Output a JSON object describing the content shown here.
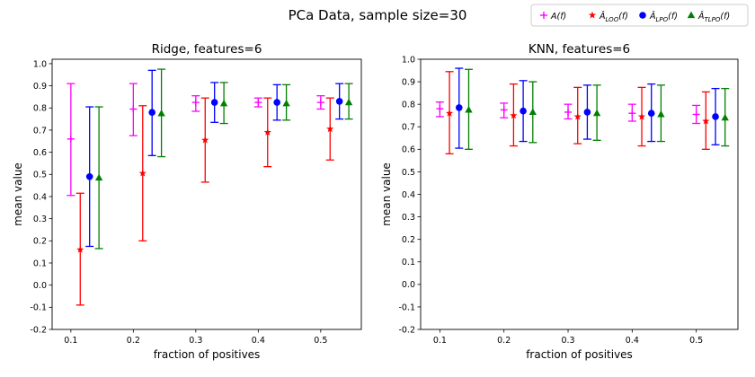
{
  "figure": {
    "suptitle": "PCa Data, sample size=30"
  },
  "legend": {
    "placement": "top-right",
    "entries": [
      {
        "label": "A(f)",
        "color": "#ff00ff",
        "marker": "plus"
      },
      {
        "label": "Â_LOO(f)",
        "color": "#ff0000",
        "marker": "star"
      },
      {
        "label": "Â_LPO(f)",
        "color": "#0000ff",
        "marker": "circle"
      },
      {
        "label": "Â_TLPO(f)",
        "color": "#008000",
        "marker": "triangle"
      }
    ]
  },
  "chart_data": [
    {
      "type": "errorbar",
      "title": "Ridge, features=6",
      "xlabel": "fraction of positives",
      "ylabel": "mean value",
      "xlim": [
        0.07,
        0.565
      ],
      "ylim": [
        -0.2,
        1.02
      ],
      "xticks": [
        "0.1",
        "0.2",
        "0.3",
        "0.4",
        "0.5"
      ],
      "xtick_values": [
        0.1,
        0.2,
        0.3,
        0.4,
        0.5
      ],
      "yticks": [
        "-0.2",
        "-0.1",
        "0.0",
        "0.1",
        "0.2",
        "0.3",
        "0.4",
        "0.5",
        "0.6",
        "0.7",
        "0.8",
        "0.9",
        "1.0"
      ],
      "ytick_values": [
        -0.2,
        -0.1,
        0.0,
        0.1,
        0.2,
        0.3,
        0.4,
        0.5,
        0.6,
        0.7,
        0.8,
        0.9,
        1.0
      ],
      "series": [
        {
          "name": "A(f)",
          "color": "#ff00ff",
          "marker": "plus",
          "x": [
            0.1,
            0.2,
            0.3,
            0.4,
            0.5
          ],
          "mean": [
            0.66,
            0.795,
            0.825,
            0.825,
            0.825
          ],
          "lower": [
            0.405,
            0.675,
            0.785,
            0.805,
            0.795
          ],
          "upper": [
            0.91,
            0.91,
            0.855,
            0.845,
            0.855
          ]
        },
        {
          "name": "Â_LOO(f)",
          "color": "#ff0000",
          "marker": "star",
          "x": [
            0.115,
            0.215,
            0.315,
            0.415,
            0.515
          ],
          "mean": [
            0.16,
            0.505,
            0.655,
            0.69,
            0.705
          ],
          "lower": [
            -0.09,
            0.2,
            0.465,
            0.535,
            0.565
          ],
          "upper": [
            0.415,
            0.81,
            0.845,
            0.845,
            0.845
          ]
        },
        {
          "name": "Â_LPO(f)",
          "color": "#0000ff",
          "marker": "circle",
          "x": [
            0.13,
            0.23,
            0.33,
            0.43,
            0.53
          ],
          "mean": [
            0.49,
            0.78,
            0.825,
            0.825,
            0.83
          ],
          "lower": [
            0.175,
            0.585,
            0.735,
            0.745,
            0.75
          ],
          "upper": [
            0.805,
            0.97,
            0.915,
            0.905,
            0.91
          ]
        },
        {
          "name": "Â_TLPO(f)",
          "color": "#008000",
          "marker": "triangle",
          "x": [
            0.145,
            0.245,
            0.345,
            0.445,
            0.545
          ],
          "mean": [
            0.485,
            0.775,
            0.82,
            0.82,
            0.825
          ],
          "lower": [
            0.165,
            0.58,
            0.73,
            0.745,
            0.75
          ],
          "upper": [
            0.805,
            0.975,
            0.915,
            0.905,
            0.91
          ]
        }
      ]
    },
    {
      "type": "errorbar",
      "title": "KNN, features=6",
      "xlabel": "fraction of positives",
      "ylabel": "mean value",
      "xlim": [
        0.07,
        0.565
      ],
      "ylim": [
        -0.2,
        1.0
      ],
      "xticks": [
        "0.1",
        "0.2",
        "0.3",
        "0.4",
        "0.5"
      ],
      "xtick_values": [
        0.1,
        0.2,
        0.3,
        0.4,
        0.5
      ],
      "yticks": [
        "-0.2",
        "-0.1",
        "0.0",
        "0.1",
        "0.2",
        "0.3",
        "0.4",
        "0.5",
        "0.6",
        "0.7",
        "0.8",
        "0.9",
        "1.0"
      ],
      "ytick_values": [
        -0.2,
        -0.1,
        0.0,
        0.1,
        0.2,
        0.3,
        0.4,
        0.5,
        0.6,
        0.7,
        0.8,
        0.9,
        1.0
      ],
      "series": [
        {
          "name": "A(f)",
          "color": "#ff00ff",
          "marker": "plus",
          "x": [
            0.1,
            0.2,
            0.3,
            0.4,
            0.5
          ],
          "mean": [
            0.78,
            0.775,
            0.765,
            0.76,
            0.755
          ],
          "lower": [
            0.745,
            0.74,
            0.735,
            0.725,
            0.715
          ],
          "upper": [
            0.81,
            0.805,
            0.8,
            0.8,
            0.795
          ]
        },
        {
          "name": "Â_LOO(f)",
          "color": "#ff0000",
          "marker": "star",
          "x": [
            0.115,
            0.215,
            0.315,
            0.415,
            0.515
          ],
          "mean": [
            0.76,
            0.75,
            0.745,
            0.745,
            0.725
          ],
          "lower": [
            0.58,
            0.615,
            0.625,
            0.615,
            0.6
          ],
          "upper": [
            0.945,
            0.89,
            0.875,
            0.875,
            0.855
          ]
        },
        {
          "name": "Â_LPO(f)",
          "color": "#0000ff",
          "marker": "circle",
          "x": [
            0.13,
            0.23,
            0.33,
            0.43,
            0.53
          ],
          "mean": [
            0.785,
            0.77,
            0.765,
            0.76,
            0.745
          ],
          "lower": [
            0.605,
            0.635,
            0.645,
            0.635,
            0.62
          ],
          "upper": [
            0.96,
            0.905,
            0.885,
            0.89,
            0.87
          ]
        },
        {
          "name": "Â_TLPO(f)",
          "color": "#008000",
          "marker": "triangle",
          "x": [
            0.145,
            0.245,
            0.345,
            0.445,
            0.545
          ],
          "mean": [
            0.775,
            0.765,
            0.76,
            0.755,
            0.74
          ],
          "lower": [
            0.6,
            0.63,
            0.64,
            0.635,
            0.615
          ],
          "upper": [
            0.955,
            0.9,
            0.885,
            0.885,
            0.87
          ]
        }
      ]
    }
  ]
}
